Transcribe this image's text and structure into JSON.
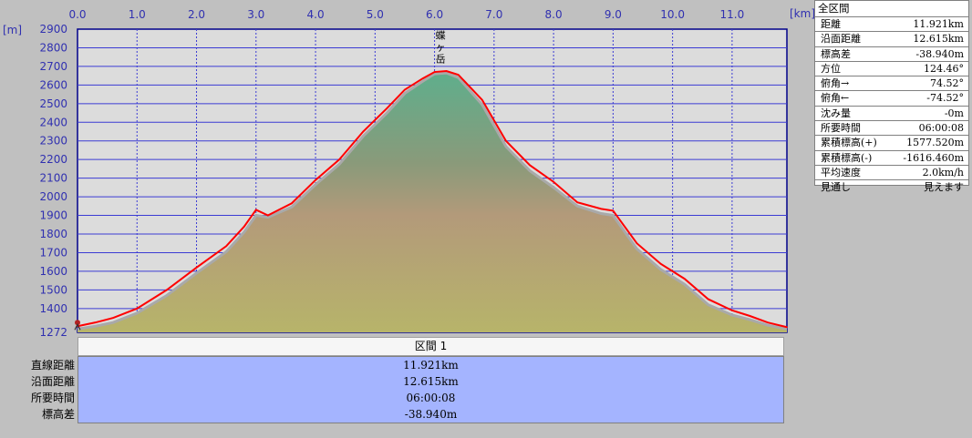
{
  "chart_data": {
    "type": "area",
    "x_unit": "[km]",
    "y_unit": "[m]",
    "x_ticks": [
      0,
      1,
      2,
      3,
      4,
      5,
      6,
      7,
      8,
      9,
      10,
      11
    ],
    "x_tick_labels": [
      "0.0",
      "1.0",
      "2.0",
      "3.0",
      "4.0",
      "5.0",
      "6.0",
      "7.0",
      "8.0",
      "9.0",
      "10.0",
      "11.0"
    ],
    "y_ticks": [
      1272,
      1400,
      1500,
      1600,
      1700,
      1800,
      1900,
      2000,
      2100,
      2200,
      2300,
      2400,
      2500,
      2600,
      2700,
      2800,
      2900
    ],
    "y_tick_labels": [
      "1272",
      "1400",
      "1500",
      "1600",
      "1700",
      "1800",
      "1900",
      "2000",
      "2100",
      "2200",
      "2300",
      "2400",
      "2500",
      "2600",
      "2700",
      "2800",
      "2900"
    ],
    "xlim": [
      0,
      11.921
    ],
    "ylim": [
      1272,
      2900
    ],
    "grid": true,
    "peak": {
      "label": "蝶ヶ岳",
      "x": 6.1,
      "y": 2677
    },
    "series": [
      {
        "role": "surface",
        "color": "#ff0000",
        "x": [
          0,
          0.3,
          0.6,
          1.0,
          1.5,
          2.0,
          2.5,
          2.8,
          3.0,
          3.2,
          3.6,
          4.0,
          4.4,
          4.8,
          5.2,
          5.5,
          5.8,
          6.0,
          6.2,
          6.4,
          6.8,
          7.2,
          7.6,
          8.0,
          8.4,
          8.8,
          9.0,
          9.4,
          9.8,
          10.2,
          10.6,
          11.0,
          11.3,
          11.6,
          11.921
        ],
        "y": [
          1305,
          1325,
          1350,
          1400,
          1500,
          1620,
          1735,
          1840,
          1930,
          1900,
          1965,
          2090,
          2200,
          2350,
          2475,
          2575,
          2635,
          2670,
          2675,
          2655,
          2520,
          2300,
          2170,
          2080,
          1970,
          1935,
          1925,
          1750,
          1640,
          1560,
          1450,
          1390,
          1360,
          1325,
          1300
        ]
      },
      {
        "role": "direct-line",
        "color": "#a9a9a9",
        "x": [
          0,
          0.3,
          0.6,
          1.0,
          1.5,
          2.0,
          2.5,
          2.8,
          3.0,
          3.2,
          3.6,
          4.0,
          4.4,
          4.8,
          5.2,
          5.5,
          5.8,
          6.0,
          6.2,
          6.4,
          6.8,
          7.2,
          7.6,
          8.0,
          8.4,
          8.8,
          9.0,
          9.4,
          9.8,
          10.2,
          10.6,
          11.0,
          11.3,
          11.6,
          11.921
        ],
        "y": [
          1290,
          1305,
          1325,
          1375,
          1470,
          1590,
          1705,
          1810,
          1900,
          1890,
          1945,
          2065,
          2175,
          2325,
          2450,
          2555,
          2620,
          2660,
          2665,
          2640,
          2495,
          2270,
          2140,
          2050,
          1950,
          1910,
          1900,
          1720,
          1610,
          1530,
          1420,
          1365,
          1340,
          1310,
          1290
        ]
      }
    ]
  },
  "stats": {
    "header": "全区間",
    "rows": [
      {
        "label": "距離",
        "value": "11.921km"
      },
      {
        "label": "沿面距離",
        "value": "12.615km"
      },
      {
        "label": "標高差",
        "value": "-38.940m"
      },
      {
        "label": "方位",
        "value": "124.46°"
      },
      {
        "label": "俯角→",
        "value": "74.52°"
      },
      {
        "label": "俯角←",
        "value": "-74.52°"
      },
      {
        "label": "沈み量",
        "value": "-0m"
      },
      {
        "label": "所要時間",
        "value": "06:00:08"
      },
      {
        "label": "累積標高(+)",
        "value": "1577.520m"
      },
      {
        "label": "累積標高(-)",
        "value": "-1616.460m"
      },
      {
        "label": "平均速度",
        "value": "2.0km/h"
      },
      {
        "label": "見通し",
        "value": "見えます"
      }
    ]
  },
  "section": {
    "header": "区間 1",
    "labels": [
      "直線距離",
      "沿面距離",
      "所要時間",
      "標高差"
    ],
    "values": [
      "11.921km",
      "12.615km",
      "06:00:08",
      "-38.940m"
    ]
  }
}
